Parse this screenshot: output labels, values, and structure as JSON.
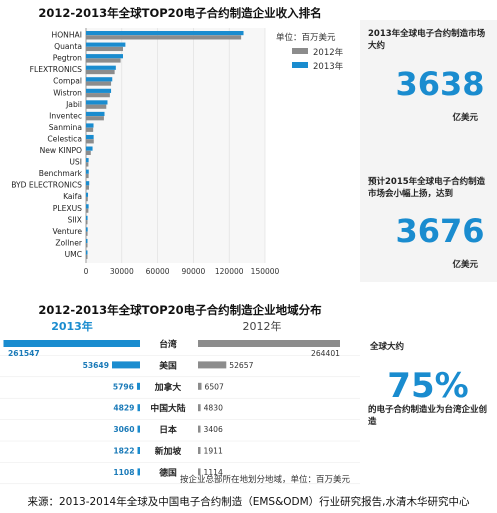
{
  "colors": {
    "y2012": "#8c8c8c",
    "y2013": "#1a8ccf",
    "accent": "#1a8ccf",
    "label": "#1a7ab8",
    "text": "#222222",
    "grid": "#dddddd",
    "panel_bg": "#f7f7f7"
  },
  "chart_data": [
    {
      "type": "bar",
      "title": "2012-2013年全球TOP20电子合约制造企业收入排名",
      "unit_label": "单位：百万美元",
      "categories": [
        "HONHAI",
        "Quanta",
        "Pegtron",
        "FLEXTRONICS",
        "Compal",
        "Wistron",
        "Jabil",
        "Inventec",
        "Sanmina",
        "Celestica",
        "New KINPO",
        "USI",
        "Benchmark",
        "BYD ELECTRONICS",
        "Kaifa",
        "PLEXUS",
        "SIIX",
        "Venture",
        "Zollner",
        "UMC"
      ],
      "series": [
        {
          "name": "2012年",
          "color": "#8c8c8c",
          "values": [
            130000,
            31000,
            29000,
            24000,
            21000,
            20000,
            17000,
            15000,
            6000,
            6500,
            4000,
            2000,
            2200,
            2500,
            1500,
            2000,
            1200,
            1300,
            1100,
            800
          ]
        },
        {
          "name": "2013年",
          "color": "#1a8ccf",
          "values": [
            132000,
            33000,
            31000,
            25000,
            22000,
            21000,
            18000,
            15500,
            6300,
            6400,
            5500,
            2200,
            2300,
            2700,
            1700,
            2200,
            1300,
            1400,
            1200,
            900
          ]
        }
      ],
      "xticks": [
        "0",
        "30000",
        "60000",
        "90000",
        "120000",
        "150000"
      ],
      "xlim": [
        0,
        150000
      ],
      "legend": "top-right",
      "grid": true
    },
    {
      "type": "bar",
      "title": "2012-2013年全球TOP20电子合约制造企业地域分布",
      "categories": [
        "台湾",
        "美国",
        "加拿大",
        "中国大陆",
        "日本",
        "新加坡",
        "德国"
      ],
      "series": [
        {
          "name": "2013年",
          "color": "#1a8ccf",
          "values": [
            261547,
            53649,
            5796,
            4829,
            3060,
            1822,
            1108
          ]
        },
        {
          "name": "2012年",
          "color": "#8c8c8c",
          "values": [
            264401,
            52657,
            6507,
            4830,
            3406,
            1911,
            1114
          ]
        }
      ],
      "footnote": "按企业总部所在地划分地域，单位：百万美元",
      "orientation": "butterfly"
    }
  ],
  "side": {
    "market_label": "2013年全球电子合约制造市场大约",
    "market_value": "3638",
    "market_unit": "亿美元",
    "forecast_label": "预计2015年全球电子合约制造市场会小幅上扬，达到",
    "forecast_value": "3676",
    "forecast_unit": "亿美元",
    "share_label_top": "全球大约",
    "share_value": "75%",
    "share_label_bottom": "的电子合约制造业为台湾企业创造"
  },
  "source": "来源：2013-2014年全球及中国电子合约制造（EMS&ODM）行业研究报告,水清木华研究中心"
}
